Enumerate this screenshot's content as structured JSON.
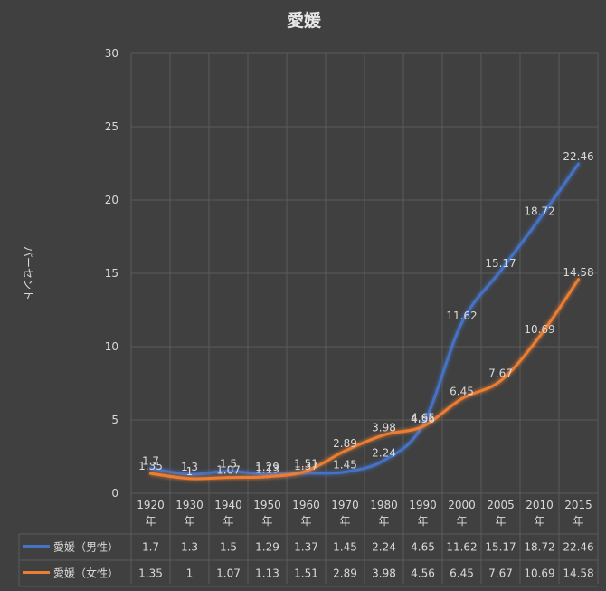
{
  "chart_data": {
    "type": "line",
    "title": "愛媛",
    "xlabel": "",
    "ylabel": "パーセント",
    "ylim": [
      0,
      30
    ],
    "yticks": [
      0,
      5,
      10,
      15,
      20,
      25,
      30
    ],
    "grid": true,
    "legend": "data table (bottom)",
    "x_unit": "年",
    "categories": [
      "1920",
      "1930",
      "1940",
      "1950",
      "1960",
      "1970",
      "1980",
      "1990",
      "2000",
      "2005",
      "2010",
      "2015"
    ],
    "series": [
      {
        "name": "愛媛（男性）",
        "color": "#4472c4",
        "values": [
          1.7,
          1.3,
          1.5,
          1.29,
          1.37,
          1.45,
          2.24,
          4.65,
          11.62,
          15.17,
          18.72,
          22.46
        ]
      },
      {
        "name": "愛媛（女性）",
        "color": "#ed7d31",
        "values": [
          1.35,
          1,
          1.07,
          1.13,
          1.51,
          2.89,
          3.98,
          4.56,
          6.45,
          7.67,
          10.69,
          14.58
        ]
      }
    ]
  }
}
